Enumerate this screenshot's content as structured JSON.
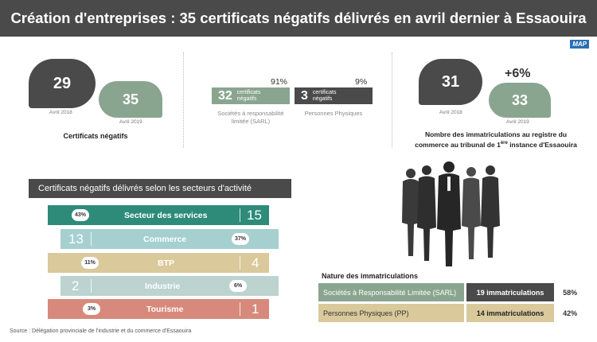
{
  "title": "Création d'entreprises : 35 certificats négatifs délivrés en avril dernier à Essaouira",
  "logo": "MAP",
  "certificates": {
    "value_2018": "29",
    "label_2018": "Avril 2018",
    "value_2019": "35",
    "label_2019": "Avril 2019",
    "caption": "Certificats négatifs"
  },
  "breakdown": {
    "sarl": {
      "pct": "91%",
      "value": "32",
      "unit": "certificats négatifs",
      "label": "Sociétés à responsabilité limitée (SARL)"
    },
    "pp": {
      "pct": "9%",
      "value": "3",
      "unit": "certificats négatifs",
      "label": "Personnes Physiques"
    }
  },
  "registrations": {
    "value_2018": "31",
    "label_2018": "Avril 2018",
    "value_2019": "33",
    "label_2019": "Avril 2019",
    "change": "+6%",
    "caption_line1": "Nombre des immatriculations au registre du",
    "caption_line2_pre": "commerce au tribunal de 1",
    "caption_line2_sup": "ère",
    "caption_line2_post": " instance d'Essaouira"
  },
  "sectors": {
    "header": "Certificats négatifs délivrés selon les secteurs d'activité",
    "items": [
      {
        "name": "Secteur des services",
        "count": "15",
        "pct": "43%",
        "color": "#2e8b7a"
      },
      {
        "name": "Commerce",
        "count": "13",
        "pct": "37%",
        "color": "#a6cfd0"
      },
      {
        "name": "BTP",
        "count": "4",
        "pct": "11%",
        "color": "#d9c99b"
      },
      {
        "name": "Industrie",
        "count": "2",
        "pct": "6%",
        "color": "#bcd3d0"
      },
      {
        "name": "Tourisme",
        "count": "1",
        "pct": "3%",
        "color": "#d78a7b"
      }
    ]
  },
  "nature": {
    "title": "Nature des immatriculations",
    "rows": [
      {
        "type": "Sociétés à Responsabilité Limitée (SARL)",
        "count": "19 immatriculations",
        "pct": "58%"
      },
      {
        "type": "Personnes Physiques (PP)",
        "count": "14 immatriculations",
        "pct": "42%"
      }
    ]
  },
  "source": "Source : Délégation provinciale de l'industrie et du commerce d'Essaouira",
  "colors": {
    "dark": "#4a4a4a",
    "green": "#8aa58f",
    "sand": "#d9c99b"
  }
}
